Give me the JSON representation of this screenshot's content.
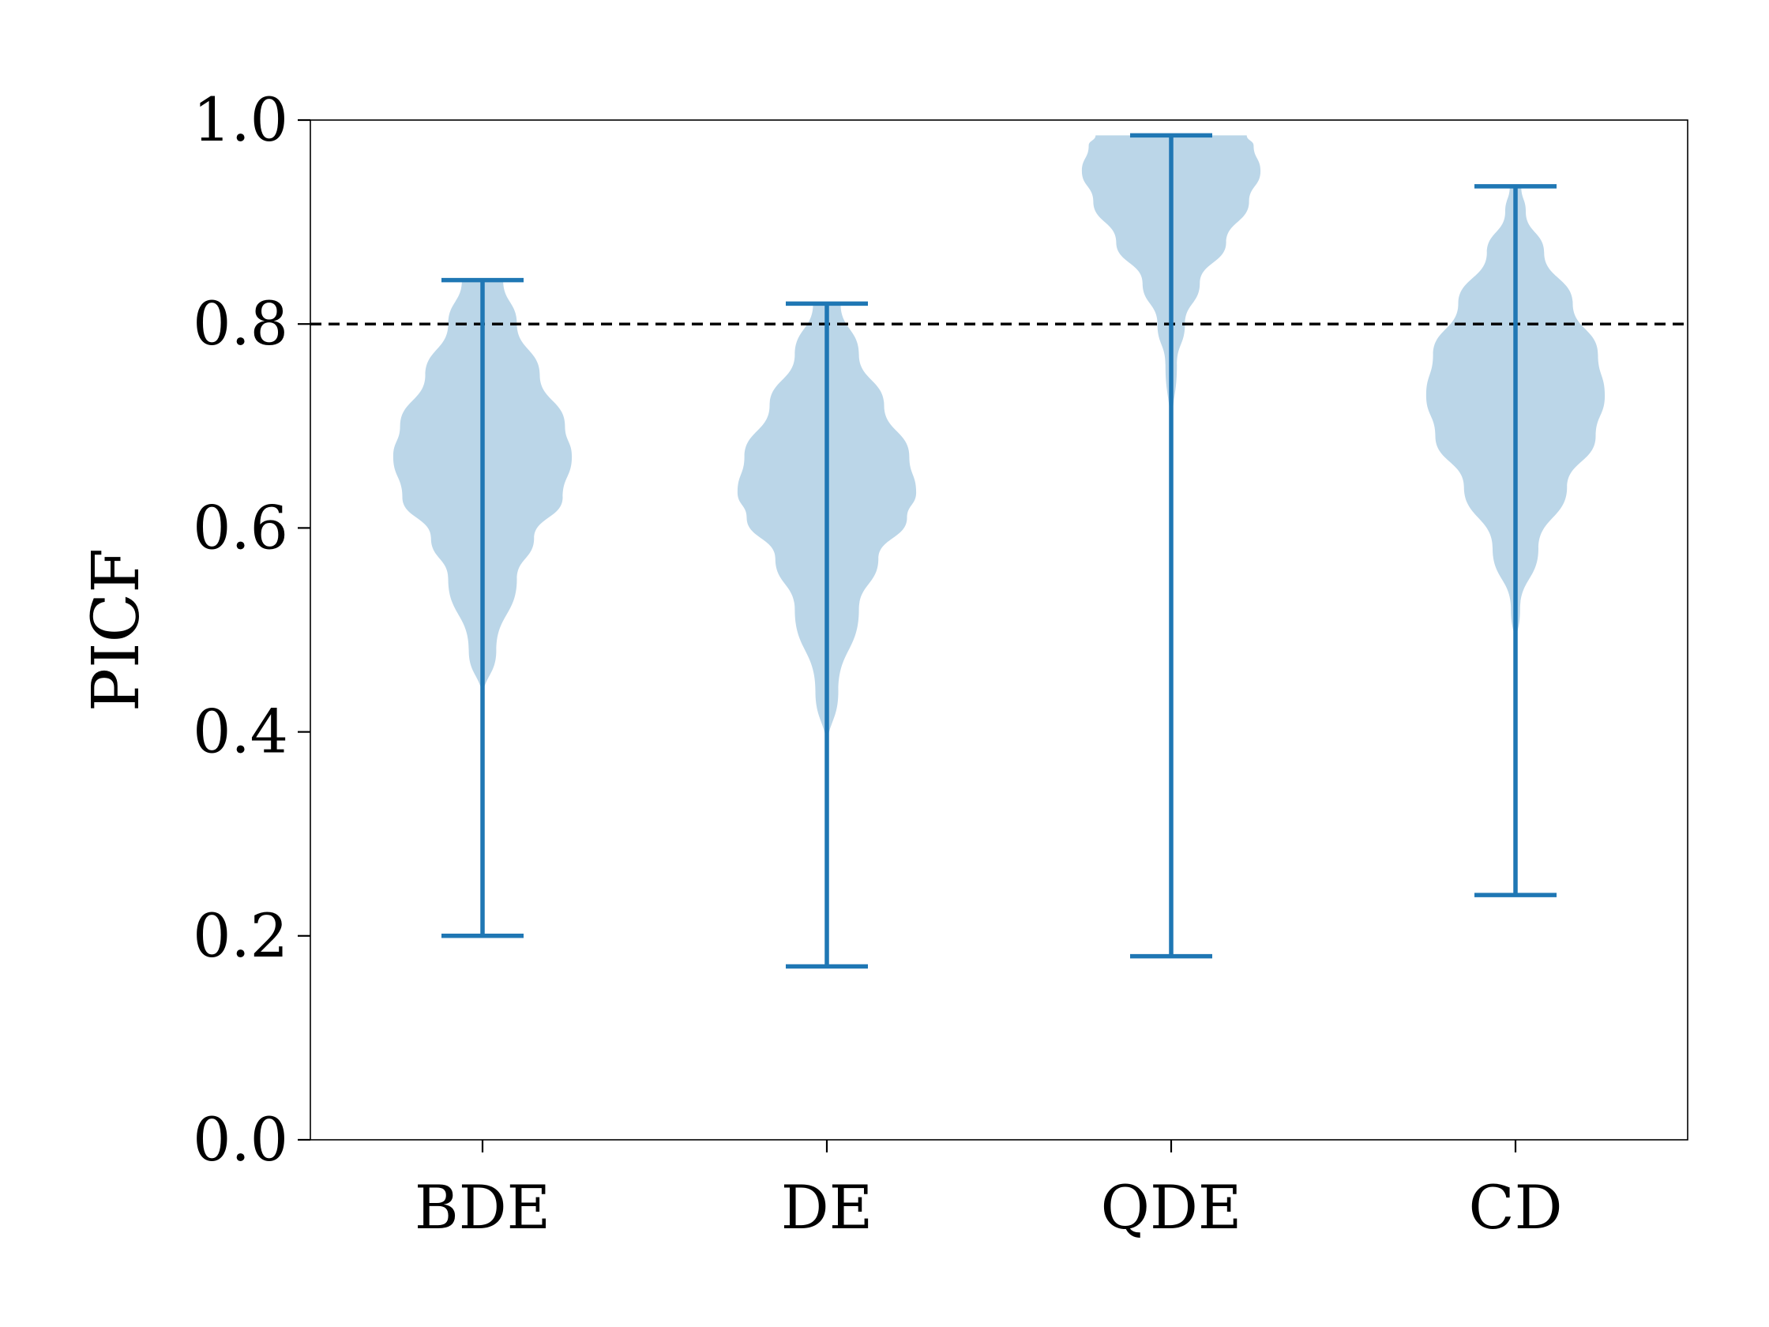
{
  "chart_data": {
    "type": "violin",
    "title": "",
    "xlabel": "",
    "ylabel": "PICF",
    "ylim": [
      0.0,
      1.0
    ],
    "yticks": [
      "0.0",
      "0.2",
      "0.4",
      "0.6",
      "0.8",
      "1.0"
    ],
    "reference_line": {
      "y": 0.8,
      "style": "dashed",
      "color": "#000000"
    },
    "colors": {
      "fill": "#1f77b4",
      "fill_opacity": 0.3,
      "stroke": "#1f77b4"
    },
    "categories": [
      "BDE",
      "DE",
      "QDE",
      "CD"
    ],
    "series": [
      {
        "name": "BDE",
        "min": 0.2,
        "max": 0.843,
        "profile": [
          [
            0.2,
            0.0
          ],
          [
            0.43,
            0.0
          ],
          [
            0.48,
            0.12
          ],
          [
            0.55,
            0.3
          ],
          [
            0.59,
            0.45
          ],
          [
            0.63,
            0.7
          ],
          [
            0.67,
            0.78
          ],
          [
            0.7,
            0.72
          ],
          [
            0.75,
            0.5
          ],
          [
            0.8,
            0.3
          ],
          [
            0.843,
            0.18
          ]
        ]
      },
      {
        "name": "DE",
        "min": 0.17,
        "max": 0.82,
        "profile": [
          [
            0.17,
            0.0
          ],
          [
            0.38,
            0.0
          ],
          [
            0.44,
            0.1
          ],
          [
            0.52,
            0.28
          ],
          [
            0.57,
            0.45
          ],
          [
            0.61,
            0.7
          ],
          [
            0.635,
            0.78
          ],
          [
            0.67,
            0.72
          ],
          [
            0.72,
            0.5
          ],
          [
            0.77,
            0.28
          ],
          [
            0.82,
            0.12
          ]
        ]
      },
      {
        "name": "QDE",
        "min": 0.18,
        "max": 0.985,
        "profile": [
          [
            0.18,
            0.0
          ],
          [
            0.55,
            0.0
          ],
          [
            0.7,
            0.01
          ],
          [
            0.76,
            0.05
          ],
          [
            0.8,
            0.12
          ],
          [
            0.84,
            0.25
          ],
          [
            0.88,
            0.48
          ],
          [
            0.92,
            0.68
          ],
          [
            0.95,
            0.78
          ],
          [
            0.975,
            0.72
          ],
          [
            0.985,
            0.66
          ]
        ]
      },
      {
        "name": "CD",
        "min": 0.24,
        "max": 0.935,
        "profile": [
          [
            0.24,
            0.0
          ],
          [
            0.48,
            0.0
          ],
          [
            0.52,
            0.04
          ],
          [
            0.58,
            0.2
          ],
          [
            0.64,
            0.45
          ],
          [
            0.69,
            0.7
          ],
          [
            0.73,
            0.78
          ],
          [
            0.77,
            0.72
          ],
          [
            0.82,
            0.5
          ],
          [
            0.87,
            0.25
          ],
          [
            0.91,
            0.09
          ],
          [
            0.935,
            0.05
          ]
        ]
      }
    ]
  }
}
